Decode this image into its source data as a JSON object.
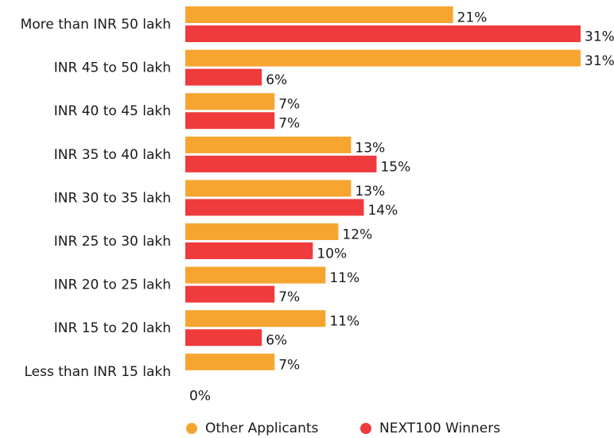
{
  "chart_data": {
    "type": "hbar",
    "categories": [
      "More than INR 50 lakh",
      "INR 45 to 50 lakh",
      "INR 40 to 45 lakh",
      "INR 35 to 40 lakh",
      "INR 30 to 35 lakh",
      "INR 25 to 30 lakh",
      "INR 20 to 25 lakh",
      "INR 15 to 20 lakh",
      "Less than INR 15 lakh"
    ],
    "series": [
      {
        "name": "Other Applicants",
        "color": "#f7a531",
        "values": [
          21,
          31,
          7,
          13,
          13,
          12,
          11,
          11,
          7
        ],
        "value_labels": [
          "21%",
          "31%",
          "7%",
          "13%",
          "13%",
          "12%",
          "11%",
          "11%",
          "7%"
        ]
      },
      {
        "name": "NEXT100 Winners",
        "color": "#ef3b3b",
        "values": [
          31,
          6,
          7,
          15,
          14,
          10,
          7,
          6,
          0
        ],
        "value_labels": [
          "31%",
          "6%",
          "7%",
          "15%",
          "14%",
          "10%",
          "7%",
          "6%",
          "0%"
        ]
      }
    ],
    "legend": "bottom"
  }
}
